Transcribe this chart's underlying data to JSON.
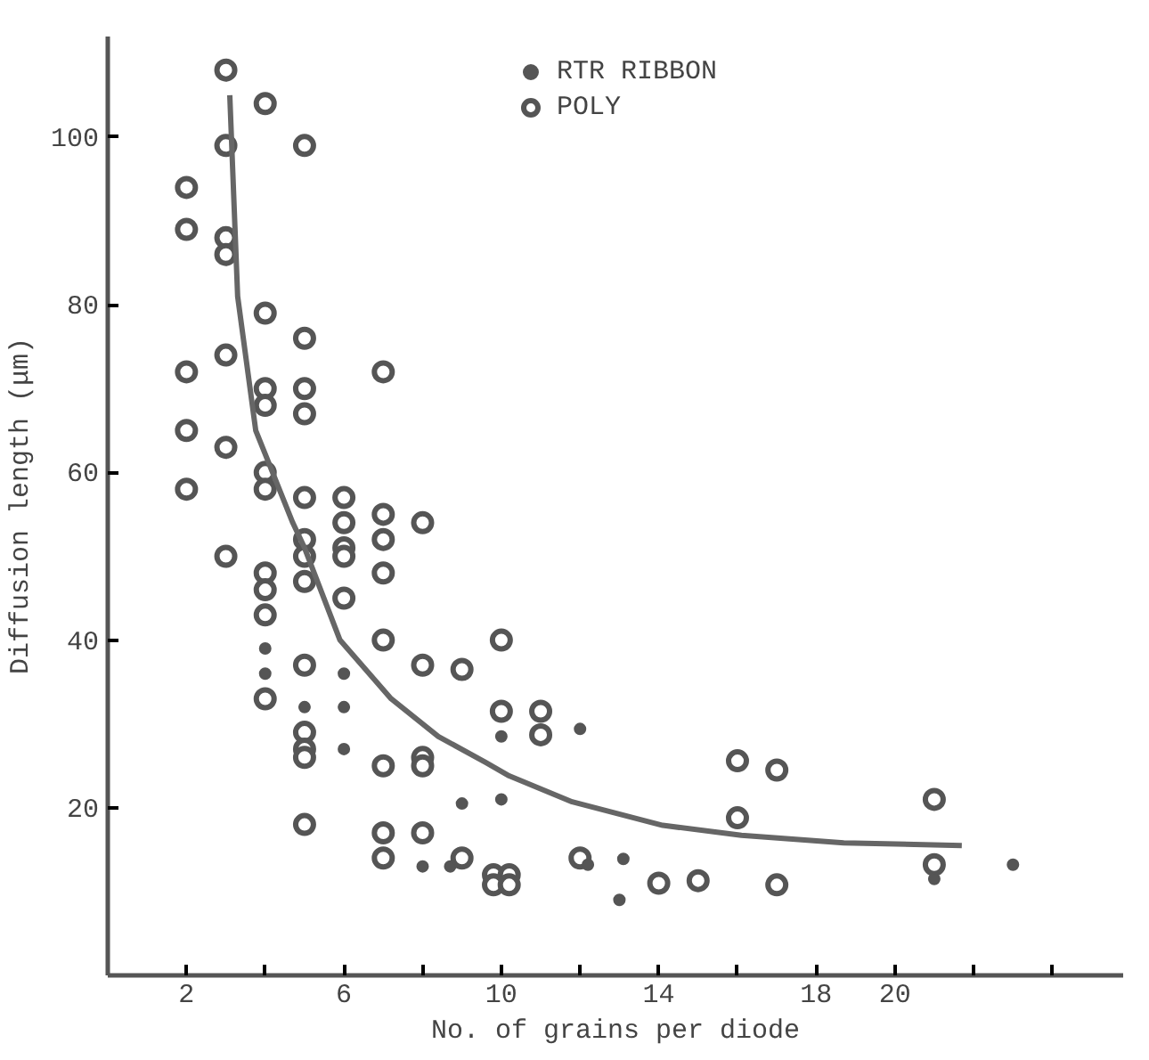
{
  "chart_data": {
    "type": "scatter",
    "xlabel": "No. of grains per diode",
    "ylabel": "Diffusion length (μm)",
    "xlim": [
      0,
      25.8
    ],
    "ylim": [
      0,
      112
    ],
    "xticks": [
      2,
      {
        "value": 4,
        "label": null
      },
      6,
      {
        "value": 8,
        "label": null
      },
      10,
      {
        "value": 12,
        "label": null
      },
      14,
      {
        "value": 16,
        "label": null
      },
      18,
      20,
      {
        "value": 22,
        "label": null
      },
      {
        "value": 24,
        "label": null
      }
    ],
    "yticks": [
      20,
      40,
      60,
      80,
      100
    ],
    "grid": false,
    "legend": "top",
    "series": [
      {
        "name": "RTR RIBBON",
        "color": "#555555",
        "marker": "circle",
        "x": [
          4,
          4,
          5,
          6,
          6,
          6,
          8,
          8.7,
          9,
          10,
          10,
          12,
          12.2,
          13.1,
          13,
          21,
          23
        ],
        "values": [
          39,
          36,
          32,
          36,
          32,
          27,
          13,
          13,
          20.5,
          21,
          28.5,
          29.4,
          13.2,
          13.9,
          9,
          11.5,
          13.2
        ]
      },
      {
        "name": "POLY",
        "color": "#555555",
        "marker": "circle",
        "x": [
          2,
          2,
          2,
          2,
          2,
          3,
          3,
          3,
          3,
          3,
          3,
          3,
          4,
          4,
          4,
          4,
          4,
          4,
          4,
          4,
          4,
          4,
          5,
          5,
          5,
          5,
          5,
          5,
          5,
          5,
          5,
          5,
          5,
          5,
          5,
          6,
          6,
          6,
          6,
          6,
          7,
          7,
          7,
          7,
          7,
          7,
          7,
          7,
          8,
          8,
          8,
          8,
          8,
          9,
          9,
          10,
          10,
          9.8,
          10.2,
          9.8,
          10.2,
          11,
          11,
          12,
          14,
          15,
          16,
          16,
          17,
          17,
          21,
          21
        ],
        "values": [
          94,
          89,
          72,
          65,
          58,
          108,
          99,
          88,
          86,
          74,
          63,
          50,
          104,
          79,
          70,
          68,
          60,
          58,
          48,
          46,
          43,
          33,
          99,
          76,
          70,
          67,
          57,
          52,
          50,
          47,
          37,
          29,
          27,
          26,
          18,
          57,
          54,
          51,
          50,
          45,
          72,
          55,
          52,
          48,
          40,
          25,
          17,
          14,
          54,
          37,
          26,
          25,
          17,
          36.5,
          14,
          40,
          31.5,
          12,
          12,
          10.8,
          10.8,
          31.5,
          28.7,
          14,
          11,
          11.3,
          25.6,
          18.8,
          24.5,
          10.8,
          21,
          13.2
        ]
      },
      {
        "type": "line",
        "color": "#666666",
        "marker": "none",
        "x": [
          3.1,
          3.3,
          3.76,
          4.7,
          5,
          5.9,
          7.2,
          8.4,
          9.6,
          10.2,
          11.8,
          14.1,
          16.1,
          18.7,
          21.7
        ],
        "values": [
          105,
          81,
          65,
          54,
          51,
          40,
          33,
          28.5,
          25.4,
          23.8,
          20.7,
          17.9,
          16.7,
          15.8,
          15.5
        ]
      }
    ]
  }
}
